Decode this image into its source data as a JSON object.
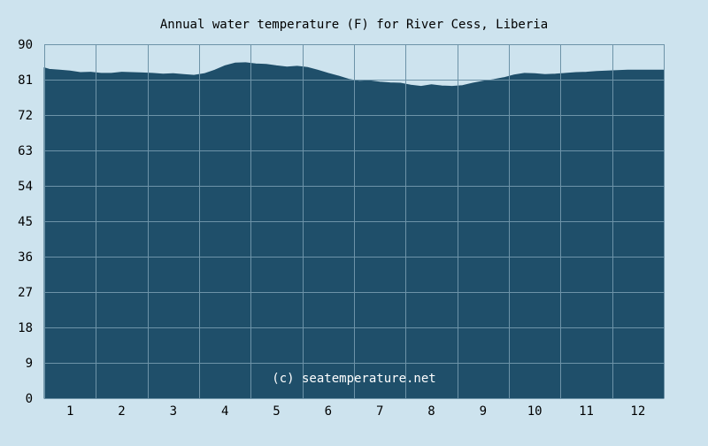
{
  "chart_data": {
    "type": "area",
    "title": "Annual water temperature (F) for River Cess, Liberia",
    "watermark": "(c) seatemperature.net",
    "xlabel": "",
    "ylabel": "",
    "xlim": [
      0.5,
      12.5
    ],
    "ylim": [
      0,
      90
    ],
    "y_ticks": [
      0,
      9,
      18,
      27,
      36,
      45,
      54,
      63,
      72,
      81,
      90
    ],
    "x_ticks": [
      1,
      2,
      3,
      4,
      5,
      6,
      7,
      8,
      9,
      10,
      11,
      12
    ],
    "grid": true,
    "series": [
      {
        "x": [
          0.5,
          0.6,
          0.8,
          1.0,
          1.2,
          1.4,
          1.6,
          1.8,
          2.0,
          2.2,
          2.4,
          2.6,
          2.8,
          3.0,
          3.2,
          3.4,
          3.6,
          3.8,
          4.0,
          4.2,
          4.4,
          4.6,
          4.8,
          5.0,
          5.2,
          5.4,
          5.6,
          5.8,
          6.0,
          6.2,
          6.4,
          6.6,
          6.8,
          7.0,
          7.2,
          7.4,
          7.6,
          7.8,
          8.0,
          8.2,
          8.4,
          8.6,
          8.8,
          9.0,
          9.2,
          9.4,
          9.6,
          9.8,
          10.0,
          10.2,
          10.4,
          10.6,
          10.8,
          11.0,
          11.2,
          11.4,
          11.6,
          11.8,
          12.0,
          12.2,
          12.5
        ],
        "values": [
          84.0,
          83.6,
          83.4,
          83.2,
          82.8,
          82.9,
          82.6,
          82.6,
          82.9,
          82.8,
          82.7,
          82.6,
          82.4,
          82.5,
          82.3,
          82.1,
          82.5,
          83.4,
          84.5,
          85.2,
          85.3,
          85.0,
          84.9,
          84.5,
          84.2,
          84.4,
          84.1,
          83.4,
          82.6,
          81.9,
          81.1,
          80.6,
          80.7,
          80.4,
          80.2,
          80.1,
          79.6,
          79.3,
          79.7,
          79.4,
          79.3,
          79.5,
          80.1,
          80.6,
          81.0,
          81.5,
          82.2,
          82.6,
          82.5,
          82.3,
          82.4,
          82.6,
          82.8,
          82.9,
          83.1,
          83.2,
          83.3,
          83.4,
          83.4,
          83.4,
          83.4
        ]
      }
    ],
    "colors": {
      "background": "#cde3ee",
      "plot_area": "#cde3ee",
      "fill": "#1f4f6a",
      "grid": "#6d93a8",
      "axis_text": "#000000",
      "title_text": "#000000",
      "watermark_text": "#ffffff"
    }
  }
}
